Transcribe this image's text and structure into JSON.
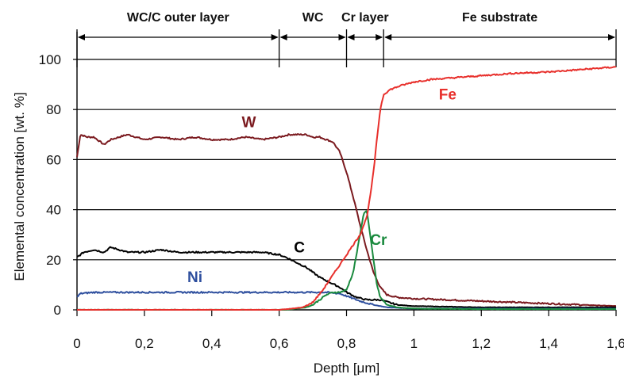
{
  "chart_data": {
    "type": "line",
    "xlabel": "Depth [μm]",
    "ylabel": "Elemental concentration [wt. %]",
    "xlim": [
      0,
      1.6
    ],
    "ylim": [
      0,
      110
    ],
    "xticks": [
      0,
      0.2,
      0.4,
      0.6,
      0.8,
      1.0,
      1.2,
      1.4,
      1.6
    ],
    "xtick_labels": [
      "0",
      "0,2",
      "0,4",
      "0,6",
      "0,8",
      "1",
      "1,2",
      "1,4",
      "1,6"
    ],
    "yticks": [
      0,
      20,
      40,
      60,
      80,
      100
    ],
    "ytick_labels": [
      "0",
      "20",
      "40",
      "60",
      "80",
      "100"
    ],
    "grid": "horizontal",
    "regions": [
      {
        "label": "WC/C outer layer",
        "x_start": 0,
        "x_end": 0.6
      },
      {
        "label": "WC",
        "x_start": 0.6,
        "x_end": 0.8
      },
      {
        "label": "Cr layer",
        "x_start": 0.8,
        "x_end": 0.91
      },
      {
        "label": "Fe substrate",
        "x_start": 0.91,
        "x_end": 1.6
      }
    ],
    "series": [
      {
        "name": "W",
        "color": "#7b1a1f",
        "label_at": [
          0.51,
          73
        ],
        "x": [
          0,
          0.01,
          0.03,
          0.05,
          0.08,
          0.1,
          0.15,
          0.2,
          0.25,
          0.3,
          0.35,
          0.4,
          0.45,
          0.5,
          0.55,
          0.6,
          0.63,
          0.66,
          0.68,
          0.7,
          0.72,
          0.74,
          0.76,
          0.78,
          0.8,
          0.82,
          0.84,
          0.86,
          0.88,
          0.9,
          0.92,
          0.95,
          1.0,
          1.1,
          1.2,
          1.3,
          1.4,
          1.5,
          1.6
        ],
        "y": [
          61,
          70,
          69,
          69,
          66,
          68,
          70,
          68,
          69,
          68,
          69,
          68,
          68,
          69,
          68,
          69,
          70,
          70,
          70,
          69,
          69,
          68,
          67,
          63,
          55,
          45,
          34,
          24,
          15,
          9,
          6,
          5,
          4.5,
          4,
          3.5,
          3,
          2.5,
          2,
          1.5
        ]
      },
      {
        "name": "C",
        "color": "#000000",
        "label_at": [
          0.66,
          23
        ],
        "x": [
          0,
          0.02,
          0.05,
          0.08,
          0.1,
          0.15,
          0.2,
          0.25,
          0.3,
          0.35,
          0.4,
          0.45,
          0.5,
          0.55,
          0.6,
          0.62,
          0.65,
          0.68,
          0.7,
          0.72,
          0.75,
          0.78,
          0.8,
          0.83,
          0.86,
          0.9,
          0.95,
          1.0,
          1.2,
          1.4,
          1.6
        ],
        "y": [
          21,
          23,
          24,
          23,
          25,
          23,
          23,
          24,
          23,
          23,
          23,
          23,
          23,
          23,
          22,
          21,
          19,
          17,
          15,
          13,
          11,
          9,
          7,
          5,
          4,
          4,
          2,
          1.5,
          1,
          1,
          1
        ]
      },
      {
        "name": "Ni",
        "color": "#2e4f9e",
        "label_at": [
          0.35,
          11
        ],
        "x": [
          0,
          0.01,
          0.05,
          0.1,
          0.2,
          0.3,
          0.4,
          0.5,
          0.6,
          0.65,
          0.7,
          0.74,
          0.78,
          0.8,
          0.84,
          0.88,
          0.92,
          1.0,
          1.2,
          1.4,
          1.6
        ],
        "y": [
          5,
          6.5,
          7,
          7,
          7,
          7,
          7,
          7,
          7,
          7,
          7,
          7,
          6.5,
          5.5,
          3.5,
          2,
          1,
          0.5,
          0.5,
          0.5,
          0.5
        ]
      },
      {
        "name": "Cr",
        "color": "#1a8a3e",
        "label_at": [
          0.895,
          26
        ],
        "x": [
          0,
          0.3,
          0.5,
          0.62,
          0.65,
          0.68,
          0.7,
          0.72,
          0.74,
          0.76,
          0.78,
          0.8,
          0.82,
          0.84,
          0.85,
          0.86,
          0.87,
          0.88,
          0.89,
          0.9,
          0.92,
          0.95,
          1.0,
          1.2,
          1.6
        ],
        "y": [
          0,
          0,
          0,
          0,
          0.5,
          1,
          2,
          4,
          6,
          7,
          7,
          8,
          15,
          30,
          38,
          40,
          30,
          20,
          10,
          5,
          2,
          1,
          0.5,
          0.3,
          0.3
        ]
      },
      {
        "name": "Fe",
        "color": "#e8302c",
        "label_at": [
          1.1,
          84
        ],
        "x": [
          0,
          0.5,
          0.6,
          0.64,
          0.67,
          0.7,
          0.73,
          0.76,
          0.79,
          0.82,
          0.84,
          0.86,
          0.87,
          0.88,
          0.89,
          0.9,
          0.91,
          0.93,
          0.96,
          1.0,
          1.05,
          1.1,
          1.2,
          1.3,
          1.4,
          1.5,
          1.6
        ],
        "y": [
          0,
          0,
          0,
          0.5,
          1,
          3,
          8,
          14,
          20,
          26,
          30,
          37,
          45,
          55,
          68,
          80,
          86,
          88,
          89.5,
          91,
          92,
          92.5,
          93.5,
          94.5,
          95,
          96,
          97
        ]
      }
    ]
  }
}
